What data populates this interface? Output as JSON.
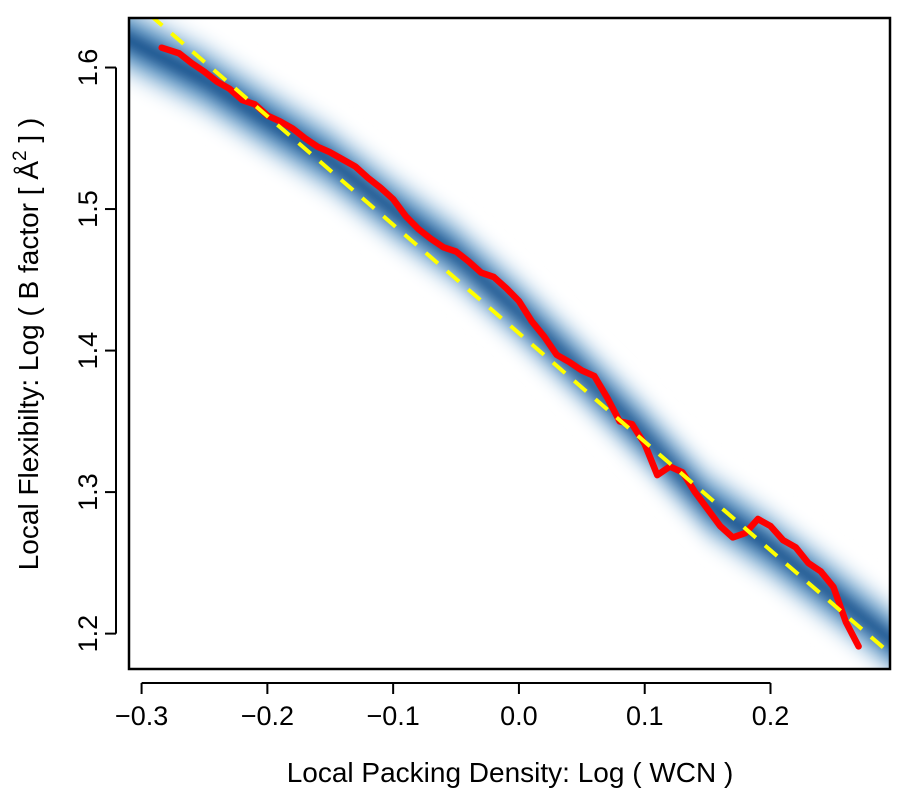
{
  "chart_data": {
    "type": "scatter",
    "title": "",
    "xlabel": "Local Packing Density: Log ( WCN )",
    "ylabel_prefix": "Local Flexibilty: Log ( B factor [ Å",
    "ylabel_sup": "2",
    "ylabel_suffix": " ] )",
    "xlim": [
      -0.31,
      0.295
    ],
    "ylim": [
      1.175,
      1.635
    ],
    "x_ticks": [
      -0.3,
      -0.2,
      -0.1,
      0.0,
      0.1,
      0.2
    ],
    "x_tick_labels": [
      "−0.3",
      "−0.2",
      "−0.1",
      "0.0",
      "0.1",
      "0.2"
    ],
    "y_ticks": [
      1.2,
      1.3,
      1.4,
      1.5,
      1.6
    ],
    "y_tick_labels": [
      "1.2",
      "1.3",
      "1.4",
      "1.5",
      "1.6"
    ],
    "grid": false,
    "density": {
      "description": "2D kernel density of residues, white (low) to dark blue (high)",
      "colors": [
        "#ffffff",
        "#1f6fa8",
        "#08306b"
      ],
      "ridge": [
        [
          -0.3,
          1.615
        ],
        [
          -0.25,
          1.592
        ],
        [
          -0.2,
          1.563
        ],
        [
          -0.15,
          1.535
        ],
        [
          -0.1,
          1.5
        ],
        [
          -0.05,
          1.468
        ],
        [
          0.0,
          1.428
        ],
        [
          0.05,
          1.385
        ],
        [
          0.1,
          1.34
        ],
        [
          0.15,
          1.292
        ],
        [
          0.2,
          1.262
        ],
        [
          0.25,
          1.228
        ],
        [
          0.29,
          1.2
        ]
      ]
    },
    "series": [
      {
        "role": "moving-average",
        "color": "#ff0000",
        "style": "solid",
        "x": [
          -0.284,
          -0.27,
          -0.26,
          -0.25,
          -0.24,
          -0.23,
          -0.22,
          -0.21,
          -0.2,
          -0.19,
          -0.18,
          -0.17,
          -0.16,
          -0.15,
          -0.14,
          -0.13,
          -0.12,
          -0.11,
          -0.1,
          -0.09,
          -0.08,
          -0.07,
          -0.06,
          -0.05,
          -0.04,
          -0.03,
          -0.02,
          -0.01,
          0.0,
          0.01,
          0.02,
          0.03,
          0.04,
          0.05,
          0.06,
          0.07,
          0.08,
          0.09,
          0.1,
          0.11,
          0.12,
          0.13,
          0.14,
          0.15,
          0.16,
          0.17,
          0.18,
          0.19,
          0.2,
          0.21,
          0.22,
          0.23,
          0.24,
          0.25,
          0.26,
          0.27
        ],
        "y": [
          1.614,
          1.61,
          1.603,
          1.597,
          1.59,
          1.585,
          1.577,
          1.574,
          1.566,
          1.562,
          1.557,
          1.55,
          1.544,
          1.54,
          1.535,
          1.53,
          1.522,
          1.515,
          1.507,
          1.495,
          1.486,
          1.479,
          1.473,
          1.47,
          1.463,
          1.455,
          1.452,
          1.444,
          1.435,
          1.421,
          1.41,
          1.397,
          1.392,
          1.386,
          1.382,
          1.367,
          1.35,
          1.348,
          1.334,
          1.312,
          1.318,
          1.314,
          1.3,
          1.288,
          1.276,
          1.268,
          1.271,
          1.281,
          1.276,
          1.266,
          1.261,
          1.25,
          1.244,
          1.233,
          1.208,
          1.191
        ]
      },
      {
        "role": "linear-fit",
        "color": "#ffff00",
        "style": "dashed",
        "x": [
          -0.31,
          0.295
        ],
        "y": [
          1.65,
          1.186
        ]
      }
    ]
  }
}
